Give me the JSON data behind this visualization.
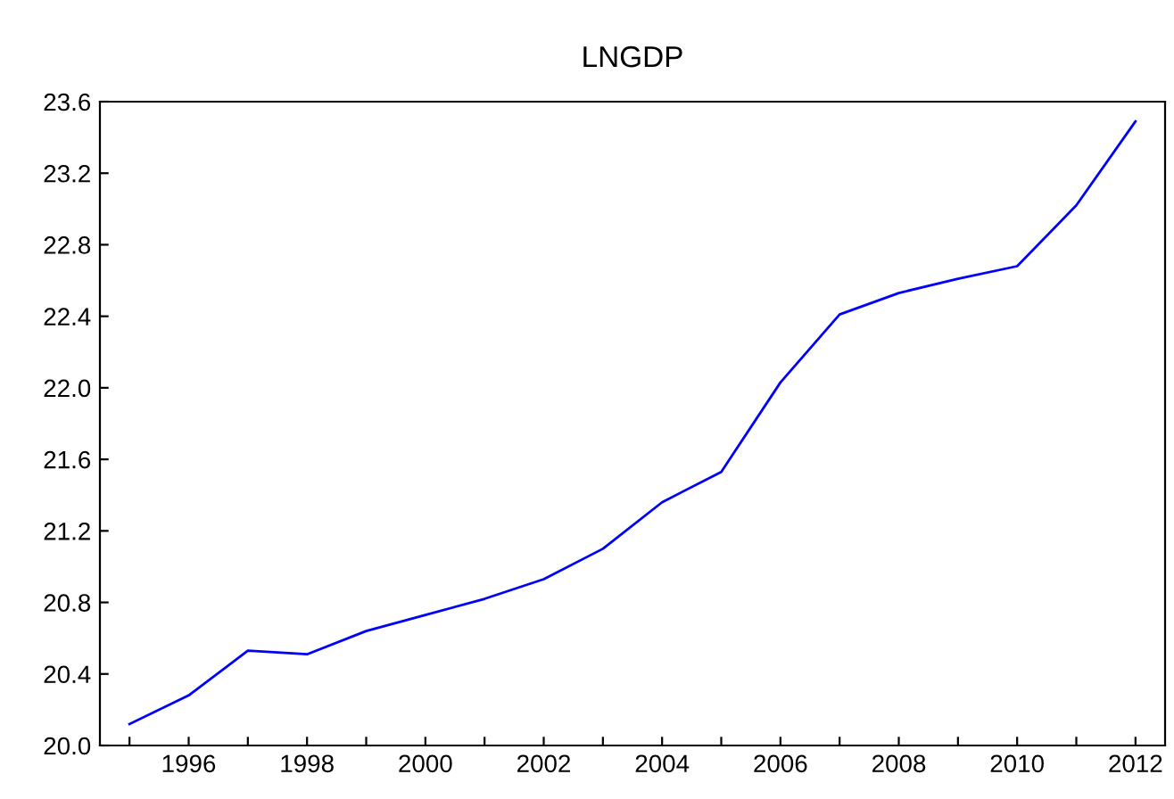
{
  "chart_data": {
    "type": "line",
    "title": "LNGDP",
    "color": "#0000ff",
    "x": [
      1995,
      1996,
      1997,
      1998,
      1999,
      2000,
      2001,
      2002,
      2003,
      2004,
      2005,
      2006,
      2007,
      2008,
      2009,
      2010,
      2011,
      2012
    ],
    "values": [
      20.12,
      20.28,
      20.53,
      20.51,
      20.64,
      20.73,
      20.82,
      20.93,
      21.1,
      21.36,
      21.53,
      22.03,
      22.41,
      22.53,
      22.61,
      22.68,
      23.02,
      23.49
    ],
    "xlim": [
      1994.5,
      2012.5
    ],
    "xticks": [
      {
        "value": 1995,
        "label": null
      },
      1996,
      {
        "value": 1997,
        "label": null
      },
      1998,
      {
        "value": 1999,
        "label": null
      },
      2000,
      {
        "value": 2001,
        "label": null
      },
      2002,
      {
        "value": 2003,
        "label": null
      },
      2004,
      {
        "value": 2005,
        "label": null
      },
      2006,
      {
        "value": 2007,
        "label": null
      },
      2008,
      {
        "value": 2009,
        "label": null
      },
      2010,
      {
        "value": 2011,
        "label": null
      },
      2012
    ],
    "ylim": [
      20.0,
      23.6
    ],
    "yticks": [
      {
        "value": 20.0,
        "label": "20.0"
      },
      {
        "value": 20.4,
        "label": "20.4"
      },
      {
        "value": 20.8,
        "label": "20.8"
      },
      {
        "value": 21.2,
        "label": "21.2"
      },
      {
        "value": 21.6,
        "label": "21.6"
      },
      {
        "value": 22.0,
        "label": "22.0"
      },
      {
        "value": 22.4,
        "label": "22.4"
      },
      {
        "value": 22.8,
        "label": "22.8"
      },
      {
        "value": 23.2,
        "label": "23.2"
      },
      {
        "value": 23.6,
        "label": "23.6"
      }
    ],
    "grid": false,
    "legend": false
  }
}
